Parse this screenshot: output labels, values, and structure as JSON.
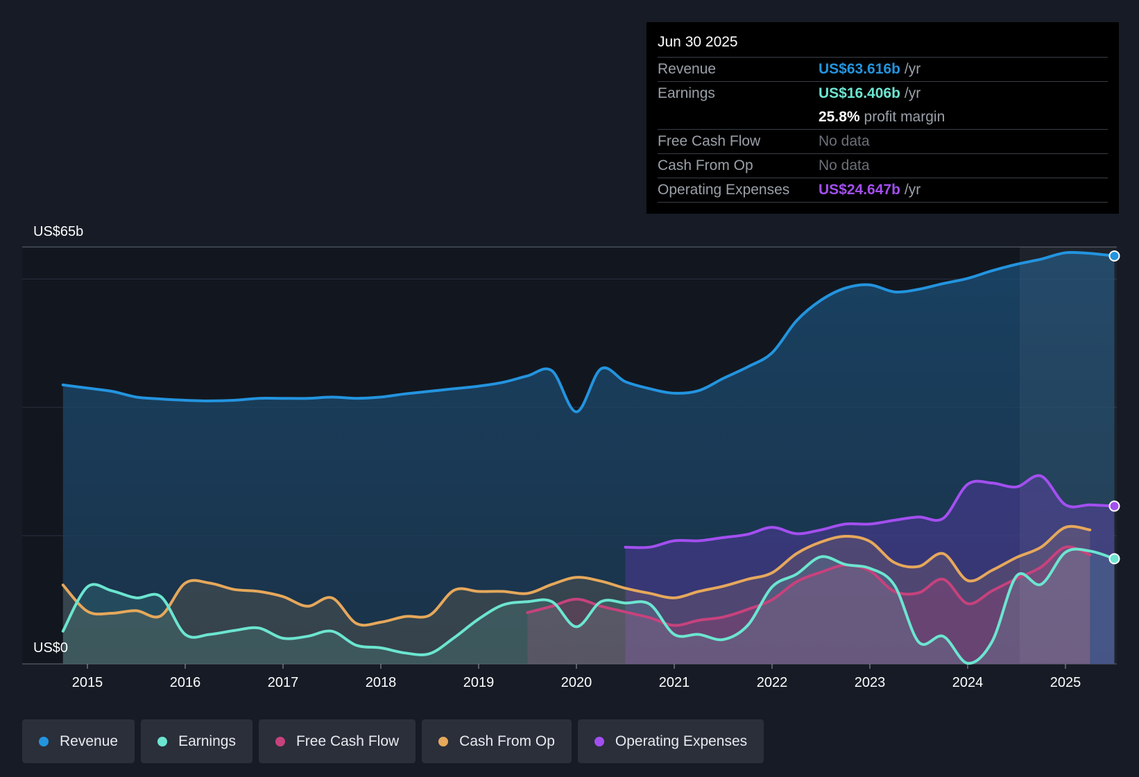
{
  "tooltip": {
    "date": "Jun 30 2025",
    "rows": {
      "revenue": {
        "label": "Revenue",
        "value": "US$63.616b",
        "unit": "/yr",
        "color": "#2394df"
      },
      "earnings": {
        "label": "Earnings",
        "value": "US$16.406b",
        "unit": "/yr",
        "color": "#6ce5d0"
      },
      "margin": {
        "value": "25.8%",
        "text": "profit margin"
      },
      "fcf": {
        "label": "Free Cash Flow",
        "value": "No data"
      },
      "cfo": {
        "label": "Cash From Op",
        "value": "No data"
      },
      "opex": {
        "label": "Operating Expenses",
        "value": "US$24.647b",
        "unit": "/yr",
        "color": "#a34ff0"
      }
    }
  },
  "legend": [
    {
      "label": "Revenue",
      "color": "#2394df"
    },
    {
      "label": "Earnings",
      "color": "#6ce5d0"
    },
    {
      "label": "Free Cash Flow",
      "color": "#c6427d"
    },
    {
      "label": "Cash From Op",
      "color": "#e6a85b"
    },
    {
      "label": "Operating Expenses",
      "color": "#a34ff0"
    }
  ],
  "chart_data": {
    "type": "area",
    "y_top_label": "US$65b",
    "y_bottom_label": "US$0",
    "ylim": [
      0,
      65
    ],
    "xlim": [
      2014.75,
      2025.5
    ],
    "xticks": [
      "2015",
      "2016",
      "2017",
      "2018",
      "2019",
      "2020",
      "2021",
      "2022",
      "2023",
      "2024",
      "2025"
    ],
    "series": [
      {
        "name": "Revenue",
        "color": "#2394df",
        "points": [
          [
            2014.75,
            43.5
          ],
          [
            2015.0,
            43.0
          ],
          [
            2015.25,
            42.5
          ],
          [
            2015.5,
            41.6
          ],
          [
            2015.75,
            41.3
          ],
          [
            2016.0,
            41.1
          ],
          [
            2016.25,
            41.0
          ],
          [
            2016.5,
            41.1
          ],
          [
            2016.75,
            41.4
          ],
          [
            2017.0,
            41.4
          ],
          [
            2017.25,
            41.4
          ],
          [
            2017.5,
            41.6
          ],
          [
            2017.75,
            41.4
          ],
          [
            2018.0,
            41.6
          ],
          [
            2018.25,
            42.1
          ],
          [
            2018.5,
            42.5
          ],
          [
            2018.75,
            42.9
          ],
          [
            2019.0,
            43.3
          ],
          [
            2019.25,
            43.9
          ],
          [
            2019.5,
            44.9
          ],
          [
            2019.75,
            45.7
          ],
          [
            2020.0,
            39.3
          ],
          [
            2020.25,
            46.0
          ],
          [
            2020.5,
            44.0
          ],
          [
            2020.75,
            42.9
          ],
          [
            2021.0,
            42.2
          ],
          [
            2021.25,
            42.6
          ],
          [
            2021.5,
            44.5
          ],
          [
            2021.75,
            46.3
          ],
          [
            2022.0,
            48.5
          ],
          [
            2022.25,
            53.5
          ],
          [
            2022.5,
            56.7
          ],
          [
            2022.75,
            58.6
          ],
          [
            2023.0,
            59.1
          ],
          [
            2023.25,
            58.0
          ],
          [
            2023.5,
            58.4
          ],
          [
            2023.75,
            59.3
          ],
          [
            2024.0,
            60.1
          ],
          [
            2024.25,
            61.3
          ],
          [
            2024.5,
            62.3
          ],
          [
            2024.75,
            63.1
          ],
          [
            2025.0,
            64.1
          ],
          [
            2025.25,
            64.0
          ],
          [
            2025.5,
            63.6
          ]
        ]
      },
      {
        "name": "Earnings",
        "color": "#6ce5d0",
        "points": [
          [
            2014.75,
            5.1
          ],
          [
            2015.0,
            12.0
          ],
          [
            2015.25,
            11.4
          ],
          [
            2015.5,
            10.3
          ],
          [
            2015.75,
            10.5
          ],
          [
            2016.0,
            4.6
          ],
          [
            2016.25,
            4.6
          ],
          [
            2016.5,
            5.2
          ],
          [
            2016.75,
            5.6
          ],
          [
            2017.0,
            4.0
          ],
          [
            2017.25,
            4.3
          ],
          [
            2017.5,
            5.1
          ],
          [
            2017.75,
            2.9
          ],
          [
            2018.0,
            2.5
          ],
          [
            2018.25,
            1.7
          ],
          [
            2018.5,
            1.6
          ],
          [
            2018.75,
            4.1
          ],
          [
            2019.0,
            7.0
          ],
          [
            2019.25,
            9.2
          ],
          [
            2019.5,
            9.7
          ],
          [
            2019.75,
            9.7
          ],
          [
            2020.0,
            5.8
          ],
          [
            2020.25,
            9.7
          ],
          [
            2020.5,
            9.5
          ],
          [
            2020.75,
            9.3
          ],
          [
            2021.0,
            4.6
          ],
          [
            2021.25,
            4.6
          ],
          [
            2021.5,
            3.8
          ],
          [
            2021.75,
            6.0
          ],
          [
            2022.0,
            12.0
          ],
          [
            2022.25,
            14.0
          ],
          [
            2022.5,
            16.7
          ],
          [
            2022.75,
            15.5
          ],
          [
            2023.0,
            14.9
          ],
          [
            2023.25,
            12.3
          ],
          [
            2023.5,
            3.4
          ],
          [
            2023.75,
            4.3
          ],
          [
            2024.0,
            0.1
          ],
          [
            2024.25,
            3.5
          ],
          [
            2024.5,
            13.7
          ],
          [
            2024.75,
            12.4
          ],
          [
            2025.0,
            17.4
          ],
          [
            2025.25,
            17.6
          ],
          [
            2025.5,
            16.4
          ]
        ]
      },
      {
        "name": "Free Cash Flow",
        "color": "#c6427d",
        "points": [
          [
            2019.5,
            8.0
          ],
          [
            2019.75,
            9.0
          ],
          [
            2020.0,
            10.1
          ],
          [
            2020.25,
            9.0
          ],
          [
            2020.5,
            8.1
          ],
          [
            2020.75,
            7.2
          ],
          [
            2021.0,
            6.0
          ],
          [
            2021.25,
            6.8
          ],
          [
            2021.5,
            7.3
          ],
          [
            2021.75,
            8.5
          ],
          [
            2022.0,
            10.0
          ],
          [
            2022.25,
            12.8
          ],
          [
            2022.5,
            14.3
          ],
          [
            2022.75,
            15.4
          ],
          [
            2023.0,
            14.5
          ],
          [
            2023.25,
            11.3
          ],
          [
            2023.5,
            11.1
          ],
          [
            2023.75,
            13.2
          ],
          [
            2024.0,
            9.4
          ],
          [
            2024.25,
            11.4
          ],
          [
            2024.5,
            13.3
          ],
          [
            2024.75,
            15.1
          ],
          [
            2025.0,
            18.2
          ],
          [
            2025.25,
            17.0
          ]
        ]
      },
      {
        "name": "Cash From Op",
        "color": "#e6a85b",
        "points": [
          [
            2014.75,
            12.3
          ],
          [
            2015.0,
            8.2
          ],
          [
            2015.25,
            7.9
          ],
          [
            2015.5,
            8.3
          ],
          [
            2015.75,
            7.5
          ],
          [
            2016.0,
            12.6
          ],
          [
            2016.25,
            12.6
          ],
          [
            2016.5,
            11.6
          ],
          [
            2016.75,
            11.3
          ],
          [
            2017.0,
            10.5
          ],
          [
            2017.25,
            9.0
          ],
          [
            2017.5,
            10.3
          ],
          [
            2017.75,
            6.3
          ],
          [
            2018.0,
            6.5
          ],
          [
            2018.25,
            7.4
          ],
          [
            2018.5,
            7.6
          ],
          [
            2018.75,
            11.5
          ],
          [
            2019.0,
            11.3
          ],
          [
            2019.25,
            11.3
          ],
          [
            2019.5,
            11.0
          ],
          [
            2019.75,
            12.4
          ],
          [
            2020.0,
            13.5
          ],
          [
            2020.25,
            12.9
          ],
          [
            2020.5,
            11.8
          ],
          [
            2020.75,
            11.0
          ],
          [
            2021.0,
            10.3
          ],
          [
            2021.25,
            11.3
          ],
          [
            2021.5,
            12.1
          ],
          [
            2021.75,
            13.2
          ],
          [
            2022.0,
            14.2
          ],
          [
            2022.25,
            17.2
          ],
          [
            2022.5,
            19.0
          ],
          [
            2022.75,
            19.9
          ],
          [
            2023.0,
            19.1
          ],
          [
            2023.25,
            15.8
          ],
          [
            2023.5,
            15.2
          ],
          [
            2023.75,
            17.2
          ],
          [
            2024.0,
            13.0
          ],
          [
            2024.25,
            14.6
          ],
          [
            2024.5,
            16.6
          ],
          [
            2024.75,
            18.2
          ],
          [
            2025.0,
            21.3
          ],
          [
            2025.25,
            20.9
          ]
        ]
      },
      {
        "name": "Operating Expenses",
        "color": "#a34ff0",
        "points": [
          [
            2020.5,
            18.2
          ],
          [
            2020.75,
            18.2
          ],
          [
            2021.0,
            19.2
          ],
          [
            2021.25,
            19.2
          ],
          [
            2021.5,
            19.7
          ],
          [
            2021.75,
            20.2
          ],
          [
            2022.0,
            21.3
          ],
          [
            2022.25,
            20.3
          ],
          [
            2022.5,
            20.9
          ],
          [
            2022.75,
            21.8
          ],
          [
            2023.0,
            21.8
          ],
          [
            2023.25,
            22.4
          ],
          [
            2023.5,
            22.9
          ],
          [
            2023.75,
            22.7
          ],
          [
            2024.0,
            28.0
          ],
          [
            2024.25,
            28.2
          ],
          [
            2024.5,
            27.6
          ],
          [
            2024.75,
            29.3
          ],
          [
            2025.0,
            24.8
          ],
          [
            2025.25,
            24.8
          ],
          [
            2025.5,
            24.6
          ]
        ]
      }
    ]
  }
}
